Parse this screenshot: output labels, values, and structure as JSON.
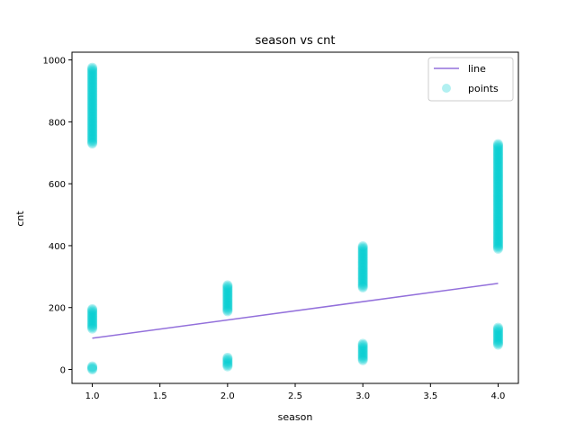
{
  "chart_data": {
    "type": "scatter",
    "title": "season vs cnt",
    "xlabel": "season",
    "ylabel": "cnt",
    "xlim": [
      0.85,
      4.15
    ],
    "ylim": [
      -45,
      1025
    ],
    "xticks": [
      1.0,
      1.5,
      2.0,
      2.5,
      3.0,
      3.5,
      4.0
    ],
    "yticks": [
      0,
      200,
      400,
      600,
      800,
      1000
    ],
    "xtick_labels": [
      "1.0",
      "1.5",
      "2.0",
      "2.5",
      "3.0",
      "3.5",
      "4.0"
    ],
    "ytick_labels": [
      "0",
      "200",
      "400",
      "600",
      "800",
      "1000"
    ],
    "grid": false,
    "legend_position": "top-right",
    "series": [
      {
        "name": "line",
        "kind": "line",
        "color": "#9370db",
        "x": [
          1.0,
          4.0
        ],
        "y": [
          101,
          278
        ]
      },
      {
        "name": "points",
        "kind": "scatter",
        "color": "#00ced1",
        "groups": [
          {
            "x": 1.0,
            "ymin": 0,
            "ymax": 10
          },
          {
            "x": 1.0,
            "ymin": 132,
            "ymax": 195
          },
          {
            "x": 1.0,
            "ymin": 730,
            "ymax": 975
          },
          {
            "x": 2.0,
            "ymin": 10,
            "ymax": 38
          },
          {
            "x": 2.0,
            "ymin": 188,
            "ymax": 272
          },
          {
            "x": 3.0,
            "ymin": 30,
            "ymax": 83
          },
          {
            "x": 3.0,
            "ymin": 265,
            "ymax": 398
          },
          {
            "x": 4.0,
            "ymin": 80,
            "ymax": 135
          },
          {
            "x": 4.0,
            "ymin": 390,
            "ymax": 728
          }
        ]
      }
    ]
  }
}
